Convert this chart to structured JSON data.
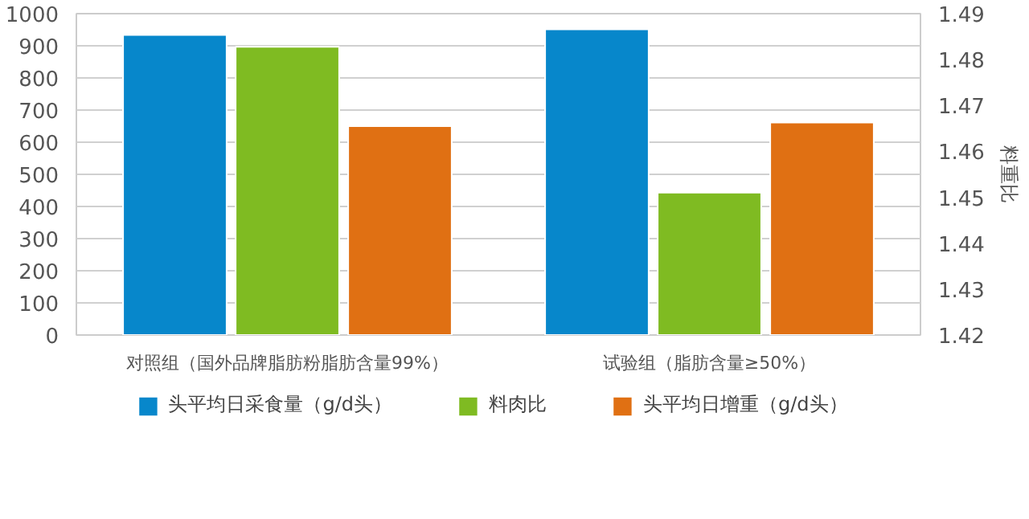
{
  "chart_data": {
    "type": "bar",
    "categories": [
      "对照组（国外品牌脂肪粉脂肪含量99%）",
      "试验组（脂肪含量≥50%）"
    ],
    "y2label": "料重比",
    "series": [
      {
        "name": "头平均日采食量（g/d头）",
        "color": "#0787cb",
        "values": [
          934,
          951
        ]
      },
      {
        "name": "料肉比",
        "color": "#7fbb22",
        "values": [
          1.4828,
          1.451
        ],
        "axis": "y2"
      },
      {
        "name": "头平均日增重（g/d头）",
        "color": "#e07013",
        "values": [
          650,
          661
        ]
      }
    ],
    "ylim": [
      0,
      1000
    ],
    "yticks": [
      0,
      100,
      200,
      300,
      400,
      500,
      600,
      700,
      800,
      900,
      1000
    ],
    "y2lim": [
      1.42,
      1.49
    ],
    "y2ticks": [
      1.42,
      1.43,
      1.44,
      1.45,
      1.46,
      1.47,
      1.48,
      1.49
    ],
    "grid": "y",
    "legend": "bottom"
  }
}
